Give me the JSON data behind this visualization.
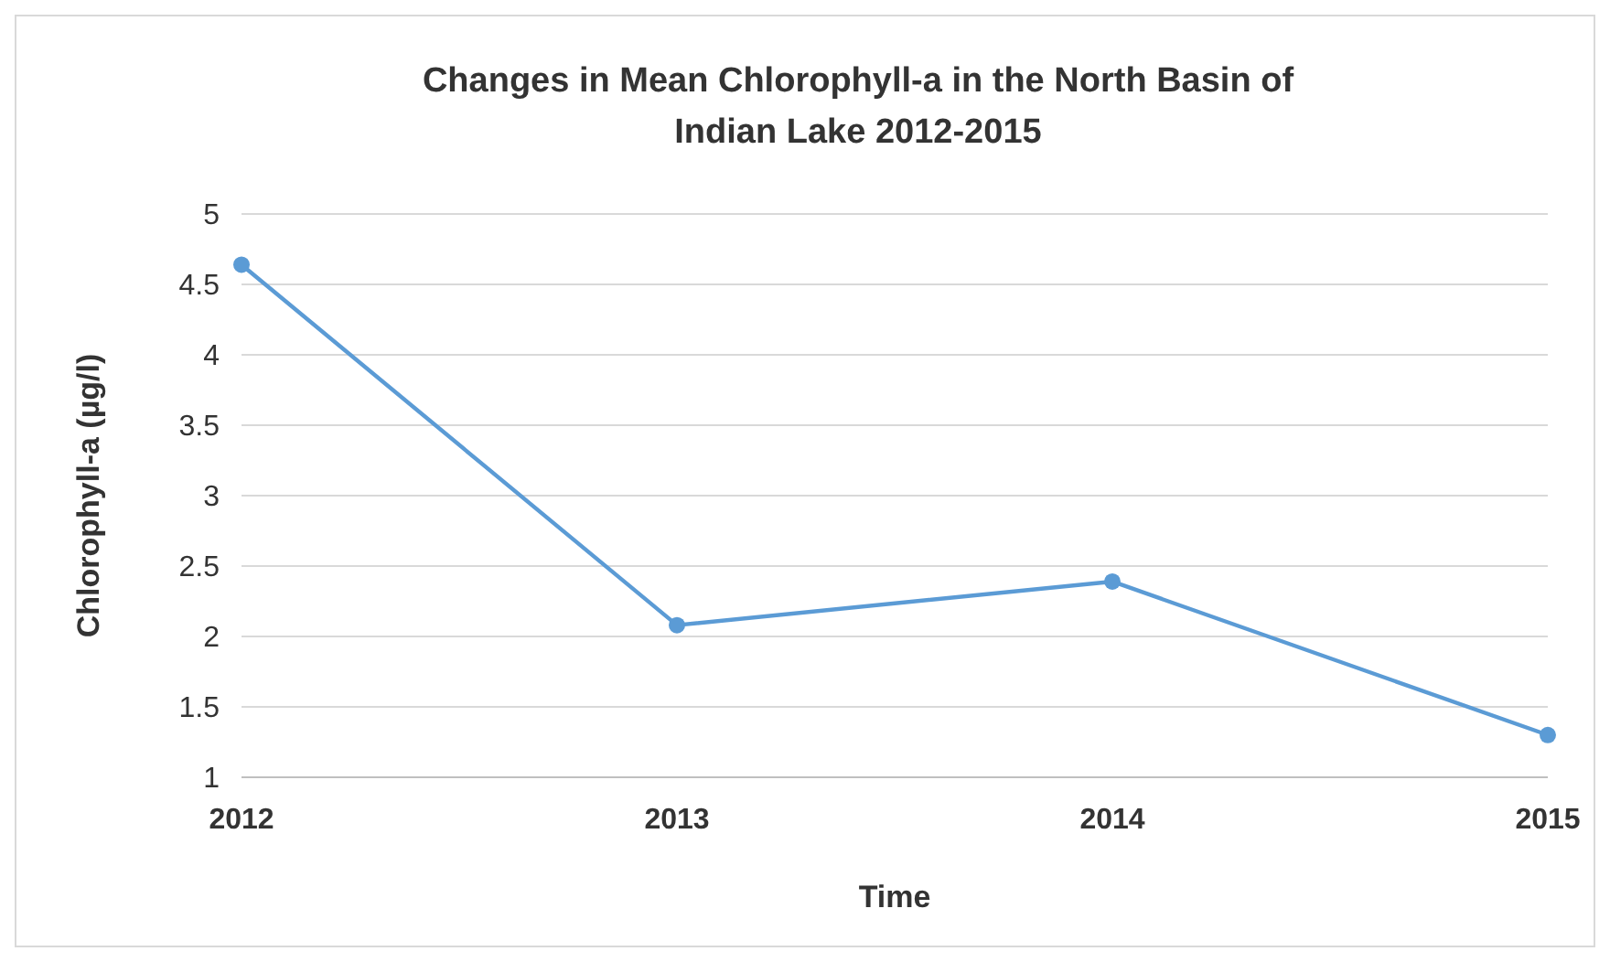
{
  "chart_data": {
    "type": "line",
    "title": "Changes in Mean Chlorophyll-a in the North Basin of Indian Lake 2012-2015",
    "xlabel": "Time",
    "ylabel": "Chlorophyll-a (µg/l)",
    "categories": [
      "2012",
      "2013",
      "2014",
      "2015"
    ],
    "series": [
      {
        "color": "#5b9bd5",
        "values": [
          4.64,
          2.08,
          2.39,
          1.3
        ]
      }
    ],
    "ylim": [
      1,
      5
    ],
    "yticks": [
      1,
      1.5,
      2,
      2.5,
      3,
      3.5,
      4,
      4.5,
      5
    ],
    "grid": "y",
    "marker": "circle",
    "line_style": "solid"
  }
}
